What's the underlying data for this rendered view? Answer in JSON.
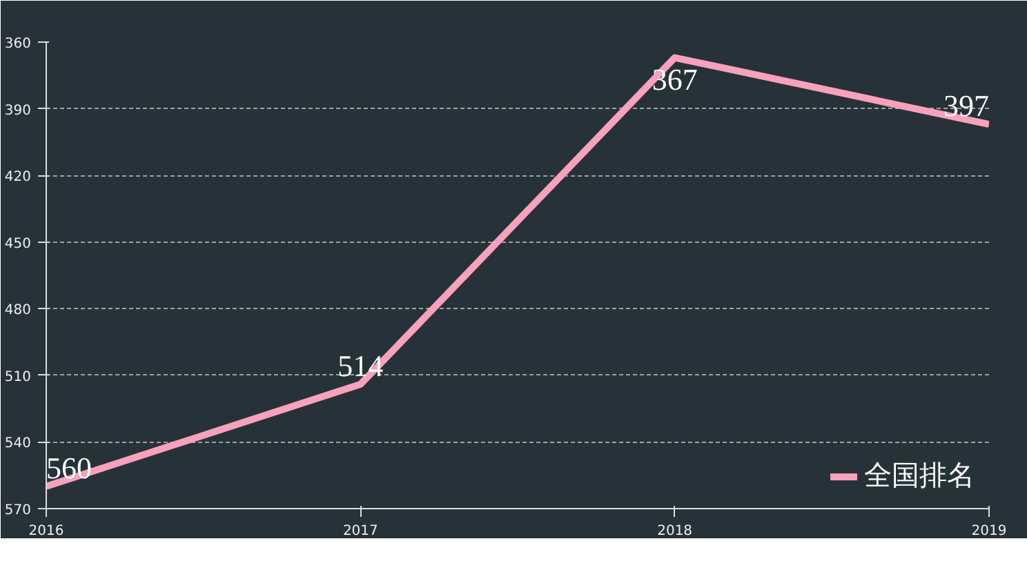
{
  "chart_data": {
    "type": "line",
    "categories": [
      "2016",
      "2017",
      "2018",
      "2019"
    ],
    "series": [
      {
        "name": "全国排名",
        "color": "#f7a1bc",
        "values": [
          560,
          514,
          367,
          397
        ]
      }
    ],
    "ylim": [
      570,
      360
    ],
    "yticks": [
      360,
      390,
      420,
      450,
      480,
      510,
      540,
      570
    ],
    "grid": "y",
    "legend": "bottom right",
    "data_labels": true,
    "line_style": "solid"
  }
}
